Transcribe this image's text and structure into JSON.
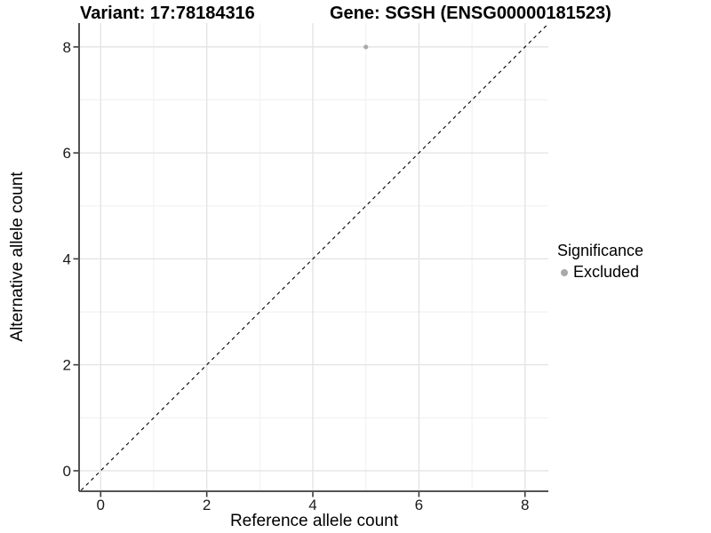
{
  "header": {
    "variant_title": "Variant: 17:78184316",
    "gene_title": "Gene: SGSH (ENSG00000181523)"
  },
  "chart_data": {
    "type": "scatter",
    "xlabel": "Reference allele count",
    "ylabel": "Alternative allele count",
    "xlim": [
      -0.39,
      8.44
    ],
    "ylim": [
      -0.37,
      8.45
    ],
    "x_ticks": [
      0,
      2,
      4,
      6,
      8
    ],
    "y_ticks": [
      0,
      2,
      4,
      6,
      8
    ],
    "x_minor_ticks": [
      1,
      3,
      5,
      7
    ],
    "y_minor_ticks": [
      1,
      3,
      5,
      7
    ],
    "grid": "major+minor",
    "legend_position": "right",
    "series": [
      {
        "name": "Excluded",
        "color": "#a9a9a9",
        "points": [
          [
            5,
            8
          ]
        ]
      }
    ],
    "reference_line": {
      "type": "identity",
      "slope": 1,
      "intercept": 0,
      "style": "dashed",
      "color": "#000000"
    }
  },
  "legend": {
    "title": "Significance",
    "items": [
      {
        "label": "Excluded",
        "color": "#a9a9a9",
        "marker": "circle"
      }
    ]
  },
  "colors": {
    "background": "#ffffff",
    "grid_major": "#e3e3e3",
    "grid_minor": "#f0f0f0",
    "axis_line": "#3c3c3c",
    "tick_label": "#1a1a1a",
    "point": "#a9a9a9"
  }
}
